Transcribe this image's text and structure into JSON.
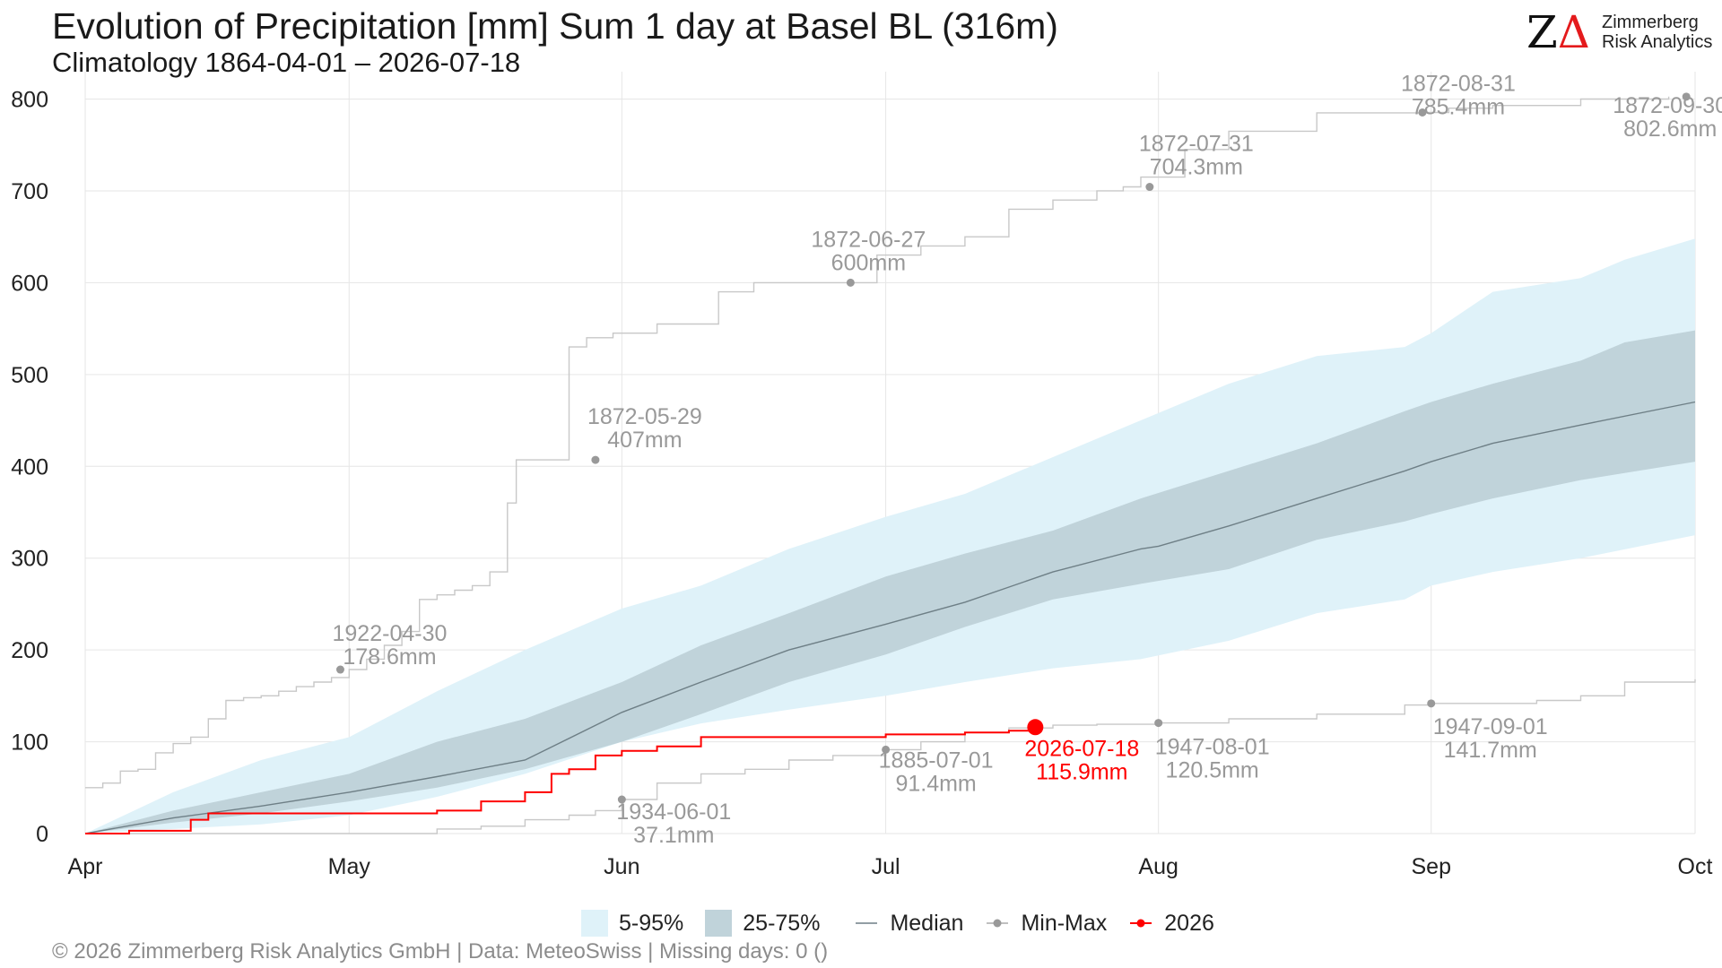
{
  "title": "Evolution of Precipitation [mm] Sum 1 day at Basel  BL (316m)",
  "subtitle": "Climatology 1864-04-01 – 2026-07-18",
  "logo": {
    "mark": "ZΔ",
    "line1": "Zimmerberg",
    "line2": "Risk Analytics"
  },
  "footer": "©  2026 Zimmerberg Risk Analytics GmbH | Data: MeteoSwiss | Missing days: 0 ()",
  "legend": {
    "band_5_95": "5-95%",
    "band_25_75": "25-75%",
    "median": "Median",
    "minmax": "Min-Max",
    "current": "2026"
  },
  "colors": {
    "band_5_95": "#dff2f9",
    "band_25_75": "#c0d3da",
    "median": "#6e7f86",
    "minmax": "#c8c8c8",
    "minmax_point": "#999999",
    "annotation": "#999999",
    "current": "#ff0000",
    "grid": "#e6e6e6"
  },
  "chart_data": {
    "type": "line",
    "x_unit": "day of season (0 = Apr 1)",
    "ylim": [
      0,
      820
    ],
    "xlim": [
      0,
      183
    ],
    "y_ticks": [
      0,
      100,
      200,
      300,
      400,
      500,
      600,
      700,
      800
    ],
    "x_ticks": [
      {
        "day": 0,
        "label": "Apr"
      },
      {
        "day": 30,
        "label": "May"
      },
      {
        "day": 61,
        "label": "Jun"
      },
      {
        "day": 91,
        "label": "Jul"
      },
      {
        "day": 122,
        "label": "Aug"
      },
      {
        "day": 153,
        "label": "Sep"
      },
      {
        "day": 183,
        "label": "Oct"
      }
    ],
    "grid": true,
    "legend_position": "bottom",
    "median": [
      [
        0,
        0
      ],
      [
        10,
        17
      ],
      [
        20,
        30
      ],
      [
        30,
        45
      ],
      [
        40,
        62
      ],
      [
        50,
        80
      ],
      [
        61,
        132
      ],
      [
        70,
        165
      ],
      [
        80,
        200
      ],
      [
        91,
        228
      ],
      [
        100,
        252
      ],
      [
        110,
        285
      ],
      [
        120,
        310
      ],
      [
        122,
        313
      ],
      [
        130,
        335
      ],
      [
        140,
        365
      ],
      [
        150,
        395
      ],
      [
        153,
        405
      ],
      [
        160,
        425
      ],
      [
        170,
        445
      ],
      [
        183,
        470
      ]
    ],
    "band_5_95": {
      "upper": [
        [
          0,
          0
        ],
        [
          10,
          45
        ],
        [
          20,
          80
        ],
        [
          30,
          105
        ],
        [
          40,
          155
        ],
        [
          50,
          200
        ],
        [
          61,
          245
        ],
        [
          70,
          270
        ],
        [
          80,
          310
        ],
        [
          91,
          345
        ],
        [
          100,
          370
        ],
        [
          110,
          410
        ],
        [
          120,
          450
        ],
        [
          130,
          490
        ],
        [
          140,
          520
        ],
        [
          150,
          530
        ],
        [
          153,
          545
        ],
        [
          160,
          590
        ],
        [
          170,
          605
        ],
        [
          175,
          625
        ],
        [
          183,
          648
        ]
      ],
      "lower": [
        [
          0,
          0
        ],
        [
          10,
          5
        ],
        [
          20,
          10
        ],
        [
          30,
          20
        ],
        [
          40,
          40
        ],
        [
          50,
          65
        ],
        [
          61,
          100
        ],
        [
          70,
          120
        ],
        [
          80,
          135
        ],
        [
          91,
          150
        ],
        [
          100,
          165
        ],
        [
          110,
          180
        ],
        [
          120,
          190
        ],
        [
          130,
          210
        ],
        [
          140,
          240
        ],
        [
          150,
          255
        ],
        [
          153,
          270
        ],
        [
          160,
          285
        ],
        [
          170,
          300
        ],
        [
          183,
          325
        ]
      ]
    },
    "band_25_75": {
      "upper": [
        [
          0,
          0
        ],
        [
          10,
          25
        ],
        [
          20,
          45
        ],
        [
          30,
          65
        ],
        [
          40,
          100
        ],
        [
          50,
          125
        ],
        [
          61,
          165
        ],
        [
          70,
          205
        ],
        [
          80,
          240
        ],
        [
          91,
          280
        ],
        [
          100,
          305
        ],
        [
          110,
          330
        ],
        [
          120,
          365
        ],
        [
          130,
          395
        ],
        [
          140,
          425
        ],
        [
          150,
          460
        ],
        [
          153,
          470
        ],
        [
          160,
          490
        ],
        [
          170,
          515
        ],
        [
          175,
          535
        ],
        [
          183,
          548
        ]
      ],
      "lower": [
        [
          0,
          0
        ],
        [
          10,
          12
        ],
        [
          20,
          22
        ],
        [
          30,
          35
        ],
        [
          40,
          50
        ],
        [
          50,
          70
        ],
        [
          61,
          100
        ],
        [
          70,
          130
        ],
        [
          80,
          165
        ],
        [
          91,
          195
        ],
        [
          100,
          225
        ],
        [
          110,
          255
        ],
        [
          120,
          272
        ],
        [
          130,
          288
        ],
        [
          140,
          320
        ],
        [
          150,
          340
        ],
        [
          153,
          348
        ],
        [
          160,
          365
        ],
        [
          170,
          385
        ],
        [
          183,
          405
        ]
      ]
    },
    "max_series": [
      [
        0,
        50
      ],
      [
        2,
        55
      ],
      [
        4,
        68
      ],
      [
        6,
        70
      ],
      [
        8,
        88
      ],
      [
        10,
        98
      ],
      [
        12,
        105
      ],
      [
        14,
        125
      ],
      [
        16,
        145
      ],
      [
        18,
        148
      ],
      [
        20,
        150
      ],
      [
        22,
        155
      ],
      [
        24,
        160
      ],
      [
        26,
        165
      ],
      [
        28,
        170
      ],
      [
        30,
        178.6
      ],
      [
        32,
        190
      ],
      [
        34,
        205
      ],
      [
        36,
        220
      ],
      [
        38,
        255
      ],
      [
        40,
        260
      ],
      [
        42,
        265
      ],
      [
        44,
        270
      ],
      [
        46,
        285
      ],
      [
        48,
        360
      ],
      [
        49,
        407
      ],
      [
        52,
        407
      ],
      [
        55,
        530
      ],
      [
        57,
        540
      ],
      [
        60,
        545
      ],
      [
        65,
        555
      ],
      [
        70,
        555
      ],
      [
        72,
        590
      ],
      [
        76,
        600
      ],
      [
        82,
        600
      ],
      [
        88,
        600
      ],
      [
        90,
        630
      ],
      [
        95,
        640
      ],
      [
        100,
        650
      ],
      [
        105,
        680
      ],
      [
        110,
        690
      ],
      [
        115,
        700
      ],
      [
        118,
        704.3
      ],
      [
        120,
        715
      ],
      [
        125,
        745
      ],
      [
        130,
        765
      ],
      [
        140,
        785
      ],
      [
        152,
        785.4
      ],
      [
        155,
        790
      ],
      [
        160,
        793
      ],
      [
        170,
        800
      ],
      [
        180,
        802.6
      ]
    ],
    "min_series": [
      [
        0,
        0
      ],
      [
        30,
        0
      ],
      [
        40,
        5
      ],
      [
        45,
        8
      ],
      [
        50,
        15
      ],
      [
        55,
        20
      ],
      [
        58,
        25
      ],
      [
        61,
        37.1
      ],
      [
        65,
        55
      ],
      [
        70,
        65
      ],
      [
        75,
        70
      ],
      [
        80,
        80
      ],
      [
        85,
        85
      ],
      [
        91,
        91.4
      ],
      [
        95,
        100
      ],
      [
        100,
        110
      ],
      [
        105,
        115
      ],
      [
        110,
        118
      ],
      [
        115,
        119
      ],
      [
        122,
        120.5
      ],
      [
        130,
        125
      ],
      [
        140,
        130
      ],
      [
        150,
        140
      ],
      [
        153,
        141.7
      ],
      [
        165,
        145
      ],
      [
        170,
        150
      ],
      [
        175,
        165
      ],
      [
        183,
        168
      ]
    ],
    "current_2026": [
      [
        0,
        0
      ],
      [
        5,
        3
      ],
      [
        10,
        3
      ],
      [
        12,
        15
      ],
      [
        14,
        22
      ],
      [
        20,
        22
      ],
      [
        25,
        22
      ],
      [
        30,
        22
      ],
      [
        35,
        22
      ],
      [
        40,
        25
      ],
      [
        45,
        35
      ],
      [
        50,
        45
      ],
      [
        53,
        65
      ],
      [
        55,
        70
      ],
      [
        58,
        85
      ],
      [
        61,
        90
      ],
      [
        65,
        95
      ],
      [
        70,
        105
      ],
      [
        75,
        105
      ],
      [
        80,
        105
      ],
      [
        91,
        108
      ],
      [
        95,
        108
      ],
      [
        100,
        110
      ],
      [
        105,
        112
      ],
      [
        108,
        115.9
      ]
    ],
    "max_points": [
      {
        "date": "1922-04-30",
        "value": "178.6mm",
        "day": 29,
        "y": 178.6
      },
      {
        "date": "1872-05-29",
        "value": "407mm",
        "day": 58,
        "y": 407
      },
      {
        "date": "1872-06-27",
        "value": "600mm",
        "day": 87,
        "y": 600
      },
      {
        "date": "1872-07-31",
        "value": "704.3mm",
        "day": 121,
        "y": 704.3
      },
      {
        "date": "1872-08-31",
        "value": "785.4mm",
        "day": 152,
        "y": 785.4
      },
      {
        "date": "1872-09-30",
        "value": "802.6mm",
        "day": 182,
        "y": 802.6
      }
    ],
    "min_points": [
      {
        "date": "1934-06-01",
        "value": "37.1mm",
        "day": 61,
        "y": 37.1
      },
      {
        "date": "1885-07-01",
        "value": "91.4mm",
        "day": 91,
        "y": 91.4
      },
      {
        "date": "1947-08-01",
        "value": "120.5mm",
        "day": 122,
        "y": 120.5
      },
      {
        "date": "1947-09-01",
        "value": "141.7mm",
        "day": 153,
        "y": 141.7
      }
    ],
    "current_point": {
      "date": "2026-07-18",
      "value": "115.9mm",
      "day": 108,
      "y": 115.9
    }
  }
}
